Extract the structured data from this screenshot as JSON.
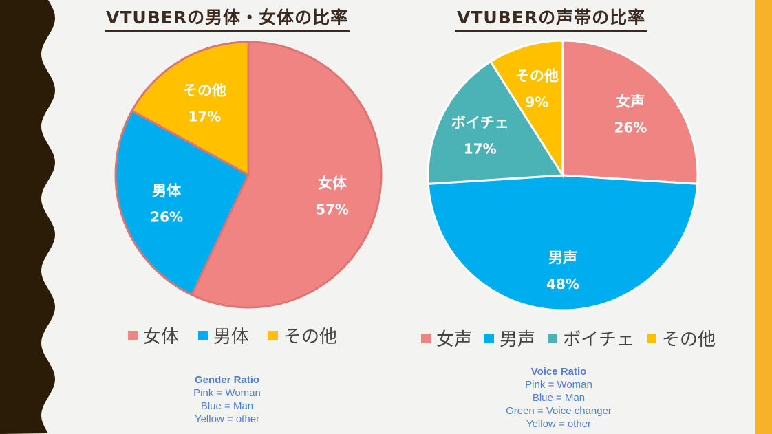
{
  "chart_data": [
    {
      "type": "pie",
      "title": "VTUBERの男体・女体の比率",
      "categories": [
        "女体",
        "男体",
        "その他"
      ],
      "values": [
        57,
        26,
        17
      ],
      "labels": [
        "57%",
        "26%",
        "17%"
      ],
      "colors": [
        "#f08482",
        "#00aeef",
        "#ffc000"
      ],
      "legend": "bottom",
      "note": {
        "heading": "Gender Ratio",
        "lines": [
          "Pink = Woman",
          "Blue = Man",
          "Yellow = other"
        ]
      }
    },
    {
      "type": "pie",
      "title": "VTUBERの声帯の比率",
      "categories": [
        "女声",
        "男声",
        "ボイチェ",
        "その他"
      ],
      "values": [
        26,
        48,
        17,
        9
      ],
      "labels": [
        "26%",
        "48%",
        "17%",
        "9%"
      ],
      "colors": [
        "#f08482",
        "#00aeef",
        "#4bb3b5",
        "#ffc000"
      ],
      "legend": "bottom",
      "note": {
        "heading": "Voice Ratio",
        "lines": [
          "Pink = Woman",
          "Blue = Man",
          "Green = Voice changer",
          "Yellow = other"
        ]
      }
    }
  ],
  "theme": {
    "left_band": "#2b1c08",
    "right_band": "#f8b229",
    "background": "#f3f3f1"
  }
}
